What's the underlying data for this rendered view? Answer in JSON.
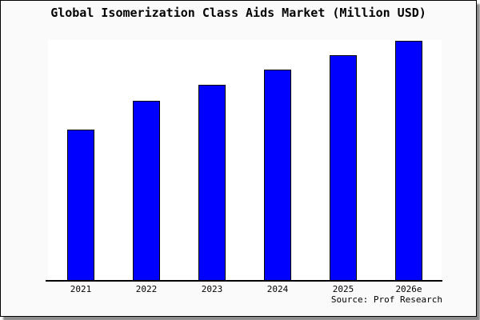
{
  "title": "Global Isomerization Class Aids Market (Million USD)",
  "source": "Source: Prof Research",
  "colors": {
    "bar_fill": "#0000ff",
    "bar_border": "#000000",
    "card_background": "#fafafa",
    "plot_background": "#ffffff",
    "axis": "#000000",
    "border": "#000000",
    "shadow": "#8c8c8c",
    "text": "#000000"
  },
  "chart_data": {
    "type": "bar",
    "title": "Global Isomerization Class Aids Market (Million USD)",
    "categories": [
      "2021",
      "2022",
      "2023",
      "2024",
      "2025",
      "2026e"
    ],
    "values": [
      63,
      75,
      81.5,
      88,
      94,
      100
    ],
    "xlabel": "",
    "ylabel": "",
    "ylim": [
      0,
      100.3
    ],
    "y_axis_visible": false,
    "grid": false,
    "legend": false,
    "annotation": "Source: Prof Research",
    "note": "No y-axis scale shown; values are estimated relative heights (% of 2026e bar)"
  }
}
